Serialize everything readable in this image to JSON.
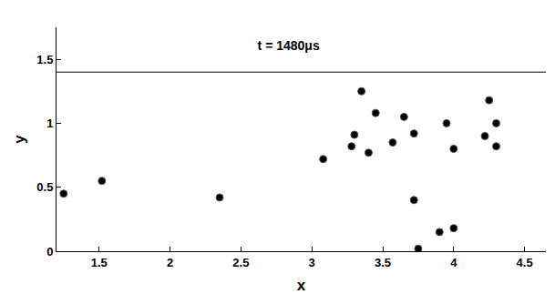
{
  "chart_data": {
    "type": "scatter",
    "title": "t = 1480μs",
    "x_label": "x",
    "y_label": "y",
    "xlim": [
      1.2,
      4.65
    ],
    "ylim": [
      0,
      1.75
    ],
    "xticks": [
      1.5,
      2,
      2.5,
      3,
      3.5,
      4,
      4.5
    ],
    "yticks": [
      0,
      0.5,
      1,
      1.5
    ],
    "grid": false,
    "wall_y": 1.4,
    "series": [
      {
        "color": "#000000",
        "marker": "circle",
        "x": [
          1.25,
          1.52,
          2.35,
          3.08,
          3.28,
          3.3,
          3.35,
          3.4,
          3.45,
          3.57,
          3.65,
          3.72,
          3.72,
          3.75,
          3.9,
          3.95,
          4.0,
          4.0,
          4.22,
          4.25,
          4.3,
          4.3
        ],
        "y": [
          0.45,
          0.55,
          0.42,
          0.72,
          0.82,
          0.91,
          1.25,
          0.77,
          1.08,
          0.85,
          1.05,
          0.92,
          0.4,
          0.02,
          0.15,
          1.0,
          0.18,
          0.8,
          0.9,
          1.18,
          0.82,
          1.0
        ]
      }
    ]
  }
}
